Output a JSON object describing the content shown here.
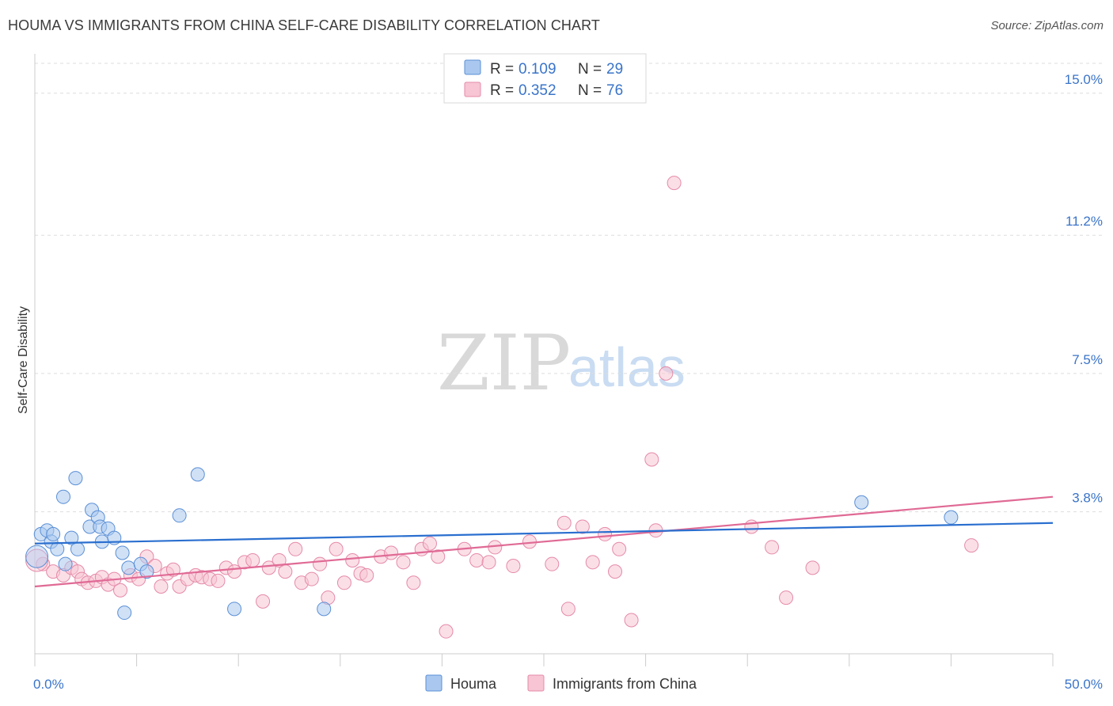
{
  "title": "HOUMA VS IMMIGRANTS FROM CHINA SELF-CARE DISABILITY CORRELATION CHART",
  "source": "Source: ZipAtlas.com",
  "watermark": {
    "part1": "ZIP",
    "part2": "atlas"
  },
  "colors": {
    "houma_fill": "#aac8ef",
    "houma_stroke": "#5a8fd6",
    "houma_line": "#2a6fcf",
    "china_fill": "#f7c5d4",
    "china_stroke": "#e58aa8",
    "china_line": "#e06a95",
    "tick_text": "#3a74c9",
    "grid": "#dddddd"
  },
  "legend": {
    "items": [
      {
        "r_label": "R = ",
        "r_value": "0.109",
        "n_label": "N = ",
        "n_value": "29"
      },
      {
        "r_label": "R = ",
        "r_value": "0.352",
        "n_label": "N = ",
        "n_value": "76"
      }
    ]
  },
  "chart_data": {
    "type": "scatter",
    "title": "HOUMA VS IMMIGRANTS FROM CHINA SELF-CARE DISABILITY CORRELATION CHART",
    "xlabel": "",
    "ylabel": "Self-Care Disability",
    "xlim": [
      0,
      50
    ],
    "ylim": [
      0,
      15.8
    ],
    "x_tick_labels": [
      "0.0%",
      "50.0%"
    ],
    "y_ticks": [
      3.8,
      7.5,
      11.2,
      15.0
    ],
    "y_tick_labels": [
      "3.8%",
      "7.5%",
      "11.2%",
      "15.0%"
    ],
    "grid": "horizontal dashed",
    "legend_position": "top-center",
    "series": [
      {
        "name": "Houma",
        "r": 0.109,
        "n": 29,
        "trend": {
          "x": [
            0,
            50
          ],
          "y": [
            2.95,
            3.5
          ]
        },
        "points": [
          [
            0.1,
            2.6
          ],
          [
            0.3,
            3.2
          ],
          [
            0.6,
            3.3
          ],
          [
            0.8,
            3.0
          ],
          [
            0.9,
            3.2
          ],
          [
            1.1,
            2.8
          ],
          [
            1.4,
            4.2
          ],
          [
            1.5,
            2.4
          ],
          [
            1.8,
            3.1
          ],
          [
            2.0,
            4.7
          ],
          [
            2.1,
            2.8
          ],
          [
            2.7,
            3.4
          ],
          [
            2.8,
            3.85
          ],
          [
            3.1,
            3.65
          ],
          [
            3.2,
            3.4
          ],
          [
            3.3,
            3.0
          ],
          [
            3.6,
            3.35
          ],
          [
            3.9,
            3.1
          ],
          [
            4.3,
            2.7
          ],
          [
            4.4,
            1.1
          ],
          [
            4.6,
            2.3
          ],
          [
            5.2,
            2.4
          ],
          [
            5.5,
            2.2
          ],
          [
            7.1,
            3.7
          ],
          [
            8.0,
            4.8
          ],
          [
            9.8,
            1.2
          ],
          [
            14.2,
            1.2
          ],
          [
            40.6,
            4.05
          ],
          [
            45.0,
            3.65
          ]
        ]
      },
      {
        "name": "Immigrants from China",
        "r": 0.352,
        "n": 76,
        "trend": {
          "x": [
            0,
            50
          ],
          "y": [
            1.8,
            4.2
          ]
        },
        "points": [
          [
            0.4,
            2.4
          ],
          [
            0.9,
            2.2
          ],
          [
            1.4,
            2.1
          ],
          [
            1.8,
            2.3
          ],
          [
            2.1,
            2.2
          ],
          [
            2.3,
            2.0
          ],
          [
            2.6,
            1.9
          ],
          [
            3.0,
            1.95
          ],
          [
            3.3,
            2.05
          ],
          [
            3.6,
            1.85
          ],
          [
            3.9,
            2.0
          ],
          [
            4.2,
            1.7
          ],
          [
            4.7,
            2.1
          ],
          [
            5.1,
            2.0
          ],
          [
            5.5,
            2.6
          ],
          [
            5.9,
            2.35
          ],
          [
            6.2,
            1.8
          ],
          [
            6.5,
            2.15
          ],
          [
            6.8,
            2.25
          ],
          [
            7.1,
            1.8
          ],
          [
            7.5,
            2.0
          ],
          [
            7.9,
            2.1
          ],
          [
            8.2,
            2.05
          ],
          [
            8.6,
            2.0
          ],
          [
            9.0,
            1.95
          ],
          [
            9.4,
            2.3
          ],
          [
            9.8,
            2.2
          ],
          [
            10.3,
            2.45
          ],
          [
            10.7,
            2.5
          ],
          [
            11.2,
            1.4
          ],
          [
            11.5,
            2.3
          ],
          [
            12.0,
            2.5
          ],
          [
            12.3,
            2.2
          ],
          [
            12.8,
            2.8
          ],
          [
            13.1,
            1.9
          ],
          [
            13.6,
            2.0
          ],
          [
            14.0,
            2.4
          ],
          [
            14.4,
            1.5
          ],
          [
            14.8,
            2.8
          ],
          [
            15.2,
            1.9
          ],
          [
            15.6,
            2.5
          ],
          [
            16.0,
            2.15
          ],
          [
            16.3,
            2.1
          ],
          [
            17.0,
            2.6
          ],
          [
            17.5,
            2.7
          ],
          [
            18.1,
            2.45
          ],
          [
            18.6,
            1.9
          ],
          [
            19.0,
            2.8
          ],
          [
            19.4,
            2.95
          ],
          [
            19.8,
            2.6
          ],
          [
            20.2,
            0.6
          ],
          [
            21.1,
            2.8
          ],
          [
            21.7,
            2.5
          ],
          [
            22.3,
            2.45
          ],
          [
            22.6,
            2.85
          ],
          [
            23.5,
            2.35
          ],
          [
            24.3,
            3.0
          ],
          [
            25.4,
            2.4
          ],
          [
            26.0,
            3.5
          ],
          [
            26.2,
            1.2
          ],
          [
            26.9,
            3.4
          ],
          [
            27.4,
            2.45
          ],
          [
            28.0,
            3.2
          ],
          [
            28.5,
            2.2
          ],
          [
            28.7,
            2.8
          ],
          [
            29.3,
            0.9
          ],
          [
            30.3,
            5.2
          ],
          [
            30.5,
            3.3
          ],
          [
            31.4,
            12.6
          ],
          [
            31.0,
            7.5
          ],
          [
            35.2,
            3.4
          ],
          [
            36.2,
            2.85
          ],
          [
            36.9,
            1.5
          ],
          [
            38.2,
            2.3
          ],
          [
            46.0,
            2.9
          ],
          [
            0.1,
            2.5
          ]
        ]
      }
    ]
  },
  "bottom_legend": [
    "Houma",
    "Immigrants from China"
  ]
}
